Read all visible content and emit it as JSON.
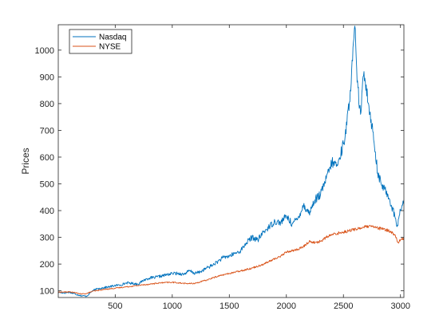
{
  "chart_data": {
    "type": "line",
    "title": "",
    "xlabel": "",
    "ylabel": "Prices",
    "xlim": [
      1,
      3030
    ],
    "ylim": [
      75,
      1095
    ],
    "x_ticks": [
      500,
      1000,
      1500,
      2000,
      2500,
      3000
    ],
    "y_ticks": [
      100,
      200,
      300,
      400,
      500,
      600,
      700,
      800,
      900,
      1000
    ],
    "grid": false,
    "legend_location": "top-left",
    "series": [
      {
        "name": "Nasdaq",
        "color": "#0072BD",
        "x": [
          1,
          50,
          100,
          150,
          200,
          250,
          300,
          350,
          400,
          450,
          500,
          550,
          600,
          650,
          700,
          750,
          800,
          850,
          900,
          950,
          1000,
          1050,
          1100,
          1150,
          1200,
          1250,
          1300,
          1350,
          1400,
          1450,
          1500,
          1550,
          1600,
          1650,
          1700,
          1750,
          1800,
          1850,
          1900,
          1950,
          2000,
          2050,
          2100,
          2150,
          2200,
          2250,
          2300,
          2350,
          2400,
          2450,
          2500,
          2530,
          2560,
          2580,
          2600,
          2620,
          2650,
          2680,
          2700,
          2720,
          2750,
          2780,
          2800,
          2830,
          2860,
          2890,
          2920,
          2950,
          2970,
          3000,
          3030
        ],
        "values": [
          95,
          92,
          95,
          88,
          82,
          80,
          100,
          108,
          112,
          115,
          120,
          122,
          130,
          128,
          125,
          140,
          148,
          150,
          155,
          160,
          165,
          165,
          162,
          175,
          165,
          172,
          185,
          195,
          210,
          225,
          230,
          240,
          250,
          280,
          300,
          290,
          320,
          340,
          360,
          355,
          380,
          350,
          370,
          420,
          390,
          440,
          460,
          520,
          580,
          570,
          650,
          720,
          850,
          960,
          1090,
          880,
          760,
          920,
          870,
          800,
          720,
          620,
          540,
          500,
          480,
          460,
          420,
          380,
          340,
          400,
          440
        ]
      },
      {
        "name": "NYSE",
        "color": "#D95319",
        "x": [
          1,
          100,
          150,
          200,
          250,
          300,
          400,
          500,
          600,
          700,
          800,
          900,
          1000,
          1050,
          1100,
          1150,
          1200,
          1300,
          1400,
          1500,
          1600,
          1700,
          1800,
          1900,
          1950,
          2000,
          2050,
          2100,
          2150,
          2200,
          2250,
          2300,
          2350,
          2400,
          2450,
          2500,
          2550,
          2600,
          2650,
          2700,
          2750,
          2800,
          2850,
          2900,
          2950,
          2980,
          3000,
          3030
        ],
        "values": [
          95,
          96,
          93,
          88,
          90,
          98,
          105,
          110,
          115,
          120,
          125,
          130,
          132,
          130,
          128,
          127,
          128,
          140,
          155,
          165,
          175,
          185,
          200,
          220,
          230,
          245,
          250,
          255,
          265,
          285,
          280,
          285,
          300,
          310,
          315,
          320,
          325,
          330,
          335,
          340,
          340,
          335,
          330,
          325,
          310,
          280,
          290,
          295
        ]
      }
    ]
  }
}
